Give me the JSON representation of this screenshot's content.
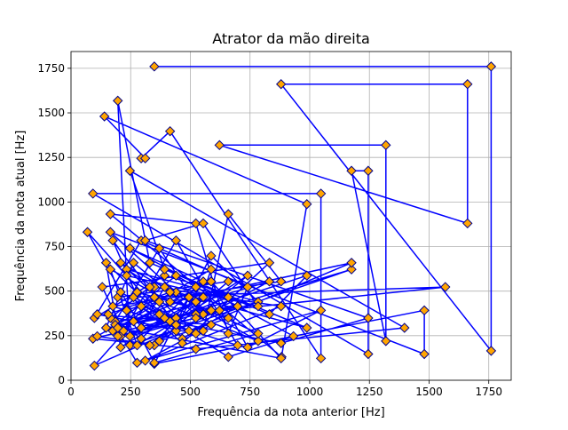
{
  "chart_data": {
    "type": "line",
    "title": "Atrator da mão direita",
    "xlabel": "Frequência da nota anterior [Hz]",
    "ylabel": "Frequência da nota atual [Hz]",
    "xlim": [
      0,
      1844
    ],
    "ylim": [
      0,
      1844
    ],
    "xticks": [
      0,
      250,
      500,
      750,
      1000,
      1250,
      1500,
      1750
    ],
    "yticks": [
      0,
      250,
      500,
      750,
      1000,
      1250,
      1500,
      1750
    ],
    "grid": true,
    "colors": {
      "line": "#0000ff",
      "marker_fill": "#ffa500",
      "marker_edge": "#00008b",
      "grid": "#b0b0b0"
    },
    "marker": "diamond",
    "series": [
      {
        "x": [
          349,
          1760,
          1760,
          880,
          1661,
          1661,
          622,
          1319,
          1319,
          1175,
          1245,
          1245,
          92,
          1047,
          1047,
          415,
          294,
          311,
          140,
          988,
          882,
          165,
          523,
          659,
          740,
          294,
          98,
          392,
          784,
          587,
          349,
          1480,
          1480,
          165,
          440,
          988,
          330,
          196,
          247,
          1175,
          554,
          370,
          185,
          1568,
          262,
          554,
          659,
          880,
          175,
          698,
          440,
          208,
          988,
          831,
          392,
          247,
          1397,
          523,
          92,
          440,
          659,
          233,
          349,
          880,
          311,
          587,
          110,
          523,
          208,
          784,
          370,
          175,
          587,
          740,
          1047,
          277,
          165,
          330,
          466,
          698,
          147,
          262,
          523,
          587,
          110,
          349,
          659,
          196,
          415,
          880,
          1245,
          311,
          554,
          784,
          233,
          440,
          69,
          294,
          392,
          523,
          208,
          147,
          370,
          659,
          932,
          247,
          554,
          440,
          175,
          294,
          466,
          831,
          131,
          220,
          349,
          587,
          196,
          523,
          740,
          277,
          165,
          415,
          1175,
          494,
          208,
          392,
          622,
          98,
          262,
          831,
          330,
          554,
          247,
          698,
          185,
          440,
          523,
          294,
          156,
          415,
          784,
          349,
          233,
          587,
          880,
          196,
          494,
          370,
          659,
          277
        ],
        "y": [
          1760,
          1760,
          165,
          1661,
          1661,
          880,
          1319,
          1319,
          220,
          1175,
          1175,
          147,
          1047,
          1047,
          123,
          1397,
          1245,
          1245,
          1480,
          988,
          131,
          932,
          880,
          262,
          523,
          784,
          349,
          587,
          440,
          698,
          92,
          392,
          147,
          831,
          494,
          294,
          659,
          1568,
          196,
          622,
          370,
          740,
          330,
          523,
          466,
          277,
          932,
          554,
          415,
          196,
          784,
          247,
          587,
          370,
          622,
          1175,
          294,
          175,
          233,
          349,
          466,
          622,
          523,
          415,
          110,
          311,
          370,
          262,
          659,
          220,
          440,
          277,
          554,
          185,
          392,
          98,
          349,
          523,
          233,
          415,
          294,
          659,
          370,
          622,
          247,
          196,
          554,
          466,
          330,
          208,
          349,
          784,
          880,
          415,
          587,
          277,
          831,
          294,
          523,
          440,
          185,
          659,
          370,
          131,
          247,
          740,
          554,
          311,
          784,
          415,
          208,
          659,
          523,
          277,
          466,
          392,
          247,
          349,
          587,
          196,
          622,
          440,
          659,
          277,
          494,
          349,
          392,
          82,
          330,
          554,
          196,
          466,
          247,
          415,
          311,
          587,
          523,
          233,
          370,
          494,
          262,
          98,
          392,
          554,
          123,
          294,
          466,
          220,
          349,
          494
        ]
      }
    ]
  }
}
